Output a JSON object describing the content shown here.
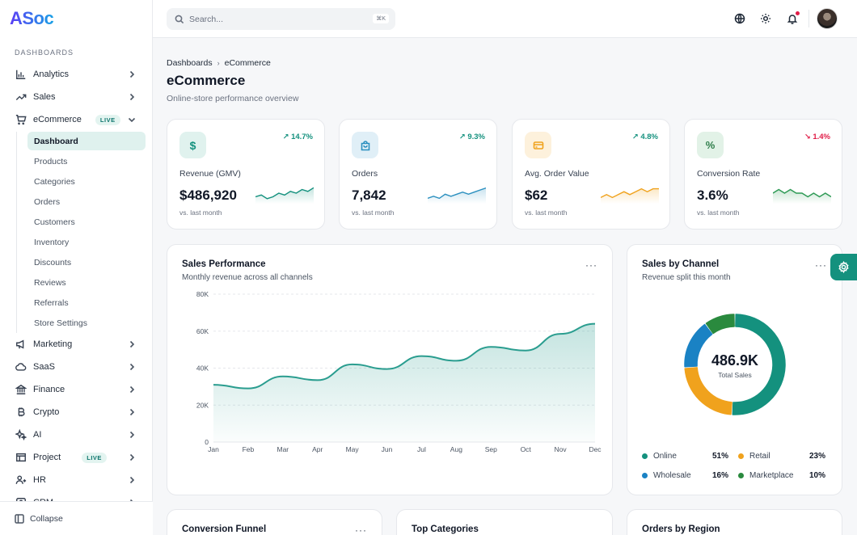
{
  "brand": {
    "name": "ASoc"
  },
  "sidebar": {
    "section_label": "DASHBOARDS",
    "items": [
      {
        "label": "Analytics",
        "icon": "bar-chart-icon"
      },
      {
        "label": "Sales",
        "icon": "trending-up-icon"
      },
      {
        "label": "eCommerce",
        "icon": "cart-icon",
        "badge": "LIVE",
        "expanded": true
      },
      {
        "label": "Marketing",
        "icon": "megaphone-icon"
      },
      {
        "label": "SaaS",
        "icon": "cloud-icon"
      },
      {
        "label": "Finance",
        "icon": "bank-icon"
      },
      {
        "label": "Crypto",
        "icon": "bitcoin-icon"
      },
      {
        "label": "AI",
        "icon": "sparkles-icon"
      },
      {
        "label": "Project",
        "icon": "kanban-icon",
        "badge": "LIVE"
      },
      {
        "label": "HR",
        "icon": "users-icon"
      },
      {
        "label": "CRM",
        "icon": "contacts-icon"
      }
    ],
    "sub_items": [
      "Dashboard",
      "Products",
      "Categories",
      "Orders",
      "Customers",
      "Inventory",
      "Discounts",
      "Reviews",
      "Referrals",
      "Store Settings"
    ],
    "active_sub": "Dashboard",
    "collapse_label": "Collapse"
  },
  "topbar": {
    "search_placeholder": "Search...",
    "search_shortcut": "⌘K"
  },
  "header": {
    "breadcrumb": [
      "Dashboards",
      "eCommerce"
    ],
    "title": "eCommerce",
    "subtitle": "Online-store performance overview"
  },
  "kpis": [
    {
      "label": "Revenue (GMV)",
      "value": "$486,920",
      "delta": "14.7%",
      "direction": "up",
      "foot": "vs. last month",
      "icon": "dollar-icon",
      "color": "#14917e",
      "spark": [
        6,
        7,
        5,
        6,
        8,
        7,
        9,
        8,
        10,
        9,
        11
      ]
    },
    {
      "label": "Orders",
      "value": "7,842",
      "delta": "9.3%",
      "direction": "up",
      "foot": "vs. last month",
      "icon": "shopping-bag-icon",
      "color": "#2a8fbf",
      "spark": [
        6,
        7,
        6,
        8,
        7,
        8,
        9,
        8,
        9,
        10,
        11
      ]
    },
    {
      "label": "Avg. Order Value",
      "value": "$62",
      "delta": "4.8%",
      "direction": "up",
      "foot": "vs. last month",
      "icon": "credit-card-icon",
      "color": "#f0a21d",
      "spark": [
        7,
        8,
        7,
        8,
        9,
        8,
        9,
        10,
        9,
        10,
        10
      ]
    },
    {
      "label": "Conversion Rate",
      "value": "3.6%",
      "delta": "1.4%",
      "direction": "down",
      "foot": "vs. last month",
      "icon": "percent-icon",
      "color": "#2e9a55",
      "spark": [
        10,
        11,
        10,
        11,
        10,
        10,
        9,
        10,
        9,
        10,
        9
      ]
    }
  ],
  "sales_performance": {
    "title": "Sales Performance",
    "subtitle": "Monthly revenue across all channels",
    "chart_data": {
      "type": "area",
      "categories": [
        "Jan",
        "Feb",
        "Mar",
        "Apr",
        "May",
        "Jun",
        "Jul",
        "Aug",
        "Sep",
        "Oct",
        "Nov",
        "Dec"
      ],
      "values": [
        31000,
        29000,
        35500,
        33500,
        42000,
        39500,
        46500,
        44000,
        51500,
        49500,
        58500,
        64000
      ],
      "ylim": [
        0,
        80000
      ],
      "yticks": [
        "0",
        "20K",
        "40K",
        "60K",
        "80K"
      ],
      "grid": true,
      "color": "#2a9d8f"
    }
  },
  "sales_by_channel": {
    "title": "Sales by Channel",
    "subtitle": "Revenue split this month",
    "center_value": "486.9K",
    "center_label": "Total Sales",
    "chart_data": {
      "type": "pie",
      "labels": [
        "Online",
        "Retail",
        "Wholesale",
        "Marketplace"
      ],
      "values": [
        51,
        23,
        16,
        10
      ],
      "display": [
        "51%",
        "23%",
        "16%",
        "10%"
      ],
      "colors": [
        "#14917e",
        "#f0a21d",
        "#1a82c4",
        "#2a8a3e"
      ]
    }
  },
  "bottom_cards": [
    "Conversion Funnel",
    "Top Categories",
    "Orders by Region"
  ]
}
